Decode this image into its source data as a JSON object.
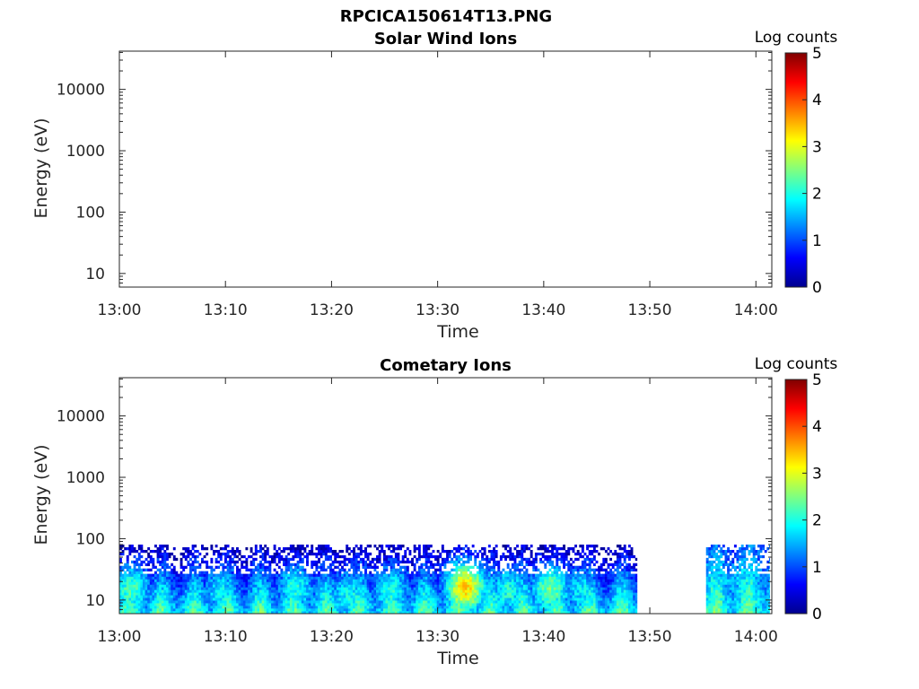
{
  "figure": {
    "title": "RPCICA150614T13.PNG"
  },
  "chart_data": [
    {
      "type": "heatmap",
      "title": "Solar Wind Ions",
      "xlabel": "Time",
      "ylabel": "Energy (eV)",
      "x_ticks": [
        "13:00",
        "13:10",
        "13:20",
        "13:30",
        "13:40",
        "13:50",
        "14:00"
      ],
      "xlim_minutes": [
        0,
        61.5
      ],
      "y_scale": "log",
      "y_ticks": [
        {
          "value": 10,
          "label": "10"
        },
        {
          "value": 100,
          "label": "100"
        },
        {
          "value": 1000,
          "label": "1000"
        },
        {
          "value": 10000,
          "label": "10000"
        }
      ],
      "ylim": [
        6,
        42000
      ],
      "colorbar": {
        "label": "Log counts",
        "range": [
          0,
          5
        ],
        "ticks": [
          "0",
          "1",
          "2",
          "3",
          "4",
          "5"
        ],
        "colormap": "jet"
      },
      "blocks": []
    },
    {
      "type": "heatmap",
      "title": "Cometary Ions",
      "xlabel": "Time",
      "ylabel": "Energy (eV)",
      "x_ticks": [
        "13:00",
        "13:10",
        "13:20",
        "13:30",
        "13:40",
        "13:50",
        "14:00"
      ],
      "xlim_minutes": [
        0,
        61.5
      ],
      "y_scale": "log",
      "y_ticks": [
        {
          "value": 10,
          "label": "10"
        },
        {
          "value": 100,
          "label": "100"
        },
        {
          "value": 1000,
          "label": "1000"
        },
        {
          "value": 10000,
          "label": "10000"
        }
      ],
      "ylim": [
        6,
        42000
      ],
      "colorbar": {
        "label": "Log counts",
        "range": [
          0,
          5
        ],
        "ticks": [
          "0",
          "1",
          "2",
          "3",
          "4",
          "5"
        ],
        "colormap": "jet"
      },
      "blocks": [
        {
          "t_start": 0.0,
          "t_end": 48.8,
          "e_min": 6,
          "e_max": 80,
          "level_low_energy": 1.5,
          "level_high_energy": 0.3
        },
        {
          "t_start": 55.3,
          "t_end": 61.3,
          "e_min": 6,
          "e_max": 80,
          "level_low_energy": 1.6,
          "level_high_energy": 1.2
        }
      ],
      "peaks": [
        {
          "t": 1.0,
          "e": 15,
          "level": 2.2
        },
        {
          "t": 9.5,
          "e": 14,
          "level": 1.8
        },
        {
          "t": 16.5,
          "e": 15,
          "level": 2.0
        },
        {
          "t": 21.5,
          "e": 12,
          "level": 1.9
        },
        {
          "t": 25.5,
          "e": 14,
          "level": 2.0
        },
        {
          "t": 32.5,
          "e": 16,
          "level": 3.3
        },
        {
          "t": 36.5,
          "e": 14,
          "level": 2.0
        },
        {
          "t": 40.5,
          "e": 15,
          "level": 2.4
        },
        {
          "t": 43.5,
          "e": 14,
          "level": 1.8
        },
        {
          "t": 58.0,
          "e": 20,
          "level": 1.6
        }
      ]
    }
  ]
}
